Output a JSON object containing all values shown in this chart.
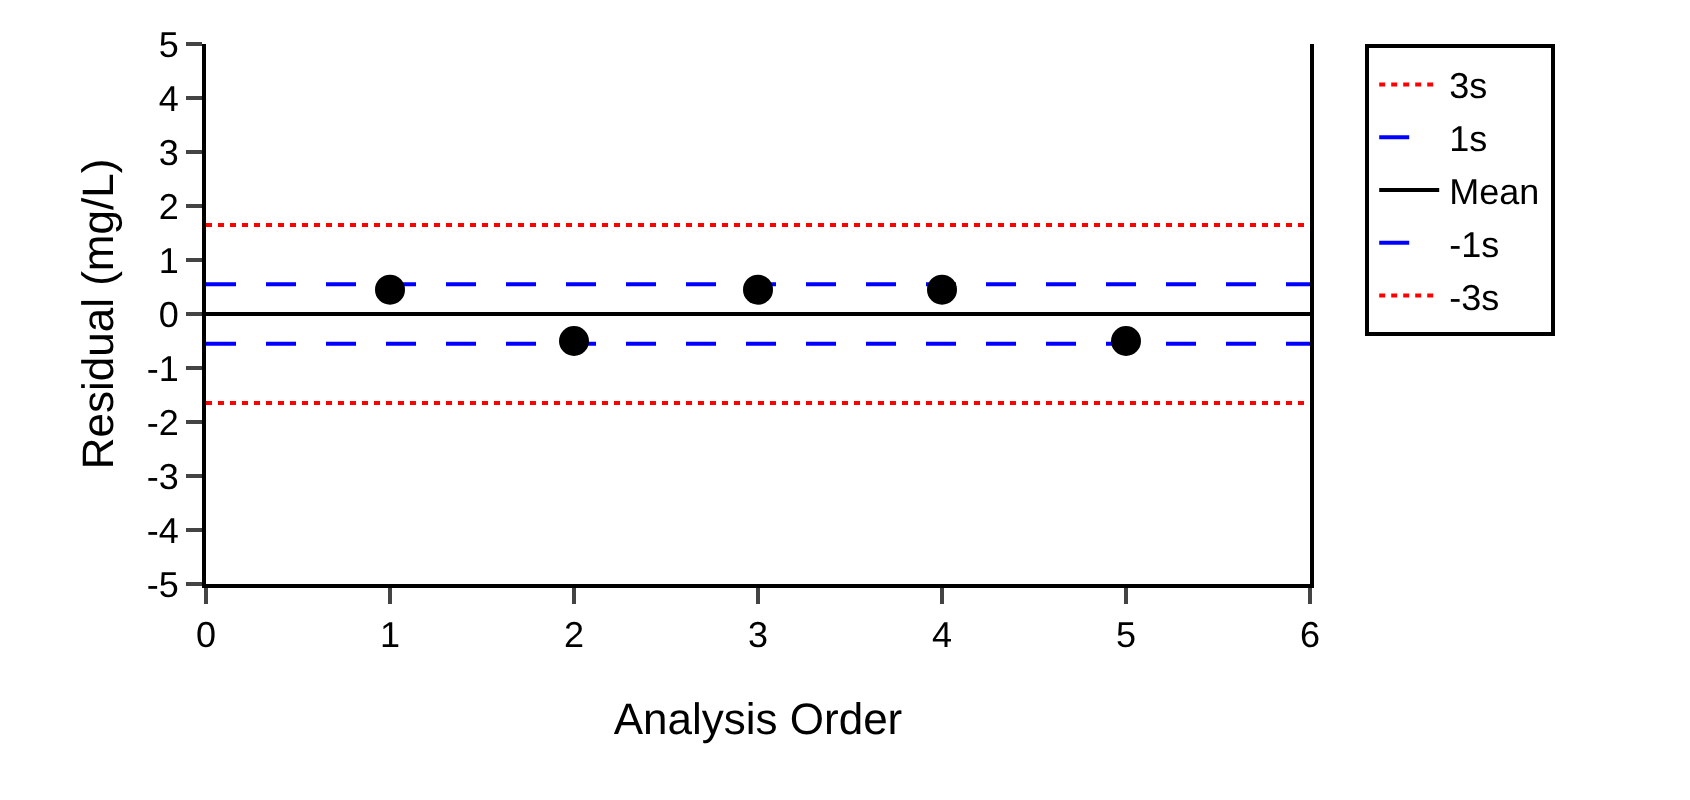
{
  "chart_data": {
    "type": "scatter",
    "xlabel": "Analysis Order",
    "ylabel": "Residual (mg/L)",
    "xlim": [
      0,
      6
    ],
    "xticks": [
      0,
      1,
      2,
      3,
      4,
      5,
      6
    ],
    "ylim": [
      -5,
      5
    ],
    "yticks": [
      -5,
      -4,
      -3,
      -2,
      -1,
      0,
      1,
      2,
      3,
      4,
      5
    ],
    "grid": false,
    "legend": "right",
    "series": [
      {
        "x": [
          1,
          2,
          3,
          4,
          5
        ],
        "values": [
          0.45,
          -0.5,
          0.45,
          0.45,
          -0.5
        ],
        "color": "#000000",
        "marker": "circle"
      },
      {
        "type": "line",
        "name": "3s",
        "x": [
          0,
          6
        ],
        "values": [
          1.65,
          1.65
        ],
        "color": "#ff0000",
        "line_style": "dotted"
      },
      {
        "type": "line",
        "name": "1s",
        "x": [
          0,
          6
        ],
        "values": [
          0.55,
          0.55
        ],
        "color": "#0000ff",
        "line_style": "dashed"
      },
      {
        "type": "line",
        "name": "Mean",
        "x": [
          0,
          6
        ],
        "values": [
          0,
          0
        ],
        "color": "#000000",
        "line_style": "solid"
      },
      {
        "type": "line",
        "name": "-1s",
        "x": [
          0,
          6
        ],
        "values": [
          -0.55,
          -0.55
        ],
        "color": "#0000ff",
        "line_style": "dashed"
      },
      {
        "type": "line",
        "name": "-3s",
        "x": [
          0,
          6
        ],
        "values": [
          -1.65,
          -1.65
        ],
        "color": "#ff0000",
        "line_style": "dotted"
      }
    ]
  }
}
